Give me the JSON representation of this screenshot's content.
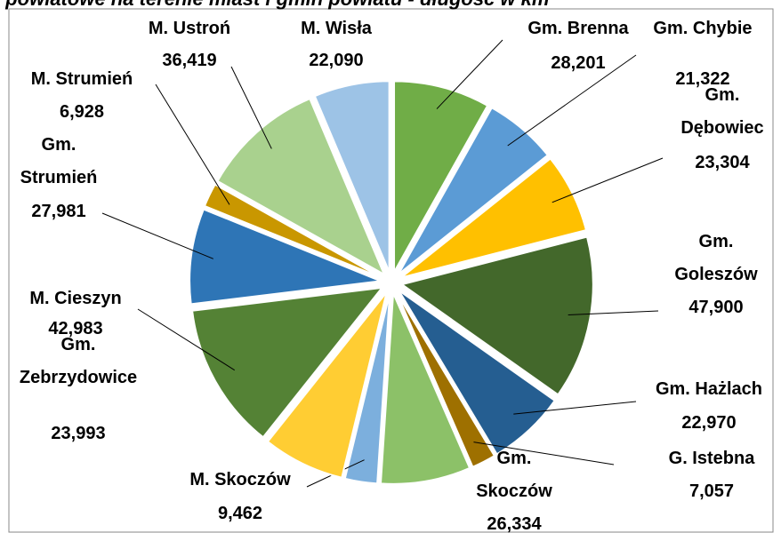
{
  "chart_data": {
    "type": "pie",
    "title": "j powiatowe na terenie miast i gmin powiatu - długość w km",
    "categories": [
      "Gm. Brenna",
      "Gm. Chybie",
      "Gm. Dębowiec",
      "Gm. Goleszów",
      "Gm. Hażlach",
      "G. Istebna",
      "Gm. Skoczów",
      "M. Skoczów",
      "Gm. Zebrzydowice",
      "M. Cieszyn",
      "Gm. Strumień",
      "M. Strumień",
      "M. Ustroń",
      "M. Wisła"
    ],
    "values": [
      28.201,
      21.322,
      23.304,
      47.9,
      22.97,
      7.057,
      26.334,
      9.462,
      23.993,
      42.983,
      27.981,
      6.928,
      36.419,
      22.09
    ],
    "value_labels": [
      "28,201",
      "21,322",
      "23,304",
      "47,900",
      "22,970",
      "7,057",
      "26,334",
      "9,462",
      "23,993",
      "42,983",
      "27,981",
      "6,928",
      "36,419",
      "22,090"
    ],
    "colors": [
      "#70ad47",
      "#5b9bd5",
      "#ffc000",
      "#43682b",
      "#255e91",
      "#9e7000",
      "#8cc168",
      "#7cafdd",
      "#ffcd33",
      "#548235",
      "#2e75b6",
      "#c99700",
      "#a9d18e",
      "#9dc3e6"
    ]
  }
}
